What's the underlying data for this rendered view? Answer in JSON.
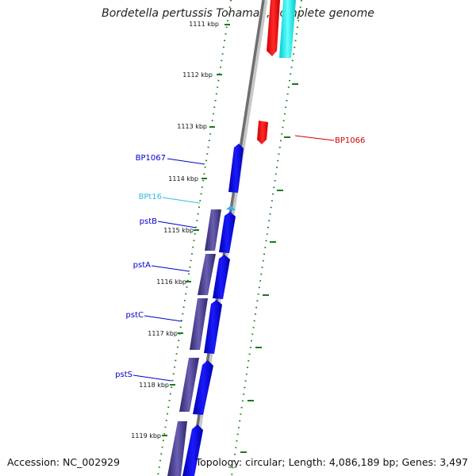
{
  "title": "Bordetella pertussis Tohama I, complete genome",
  "footer": {
    "accession": "Accession: NC_002929",
    "topology": "Topology: circular; Length: 4,086,189 bp; Genes: 3,497"
  },
  "ruler": [
    {
      "label": "1111 kbp"
    },
    {
      "label": "1112 kbp"
    },
    {
      "label": "1113 kbp"
    },
    {
      "label": "1114 kbp"
    },
    {
      "label": "1115 kbp"
    },
    {
      "label": "1116 kbp"
    },
    {
      "label": "1117 kbp"
    },
    {
      "label": "1118 kbp"
    },
    {
      "label": "1119 kbp"
    }
  ],
  "features": [
    {
      "label": "BP1066",
      "color": "#cc0000"
    },
    {
      "label": "BP1067",
      "color": "#0000cc"
    },
    {
      "label": "BPt16",
      "color": "#33bbdd"
    },
    {
      "label": "pstB",
      "color": "#0000cc"
    },
    {
      "label": "pstA",
      "color": "#0000cc"
    },
    {
      "label": "pstC",
      "color": "#0000cc"
    },
    {
      "label": "pstS",
      "color": "#0000cc"
    }
  ],
  "colors": {
    "forward_cds": "#0000ee",
    "reverse_cds": "#ee0000",
    "trna": "#00dddd",
    "cog": "#4a3f8f",
    "tick": "#1a7a1a",
    "backbone": "#777777"
  }
}
